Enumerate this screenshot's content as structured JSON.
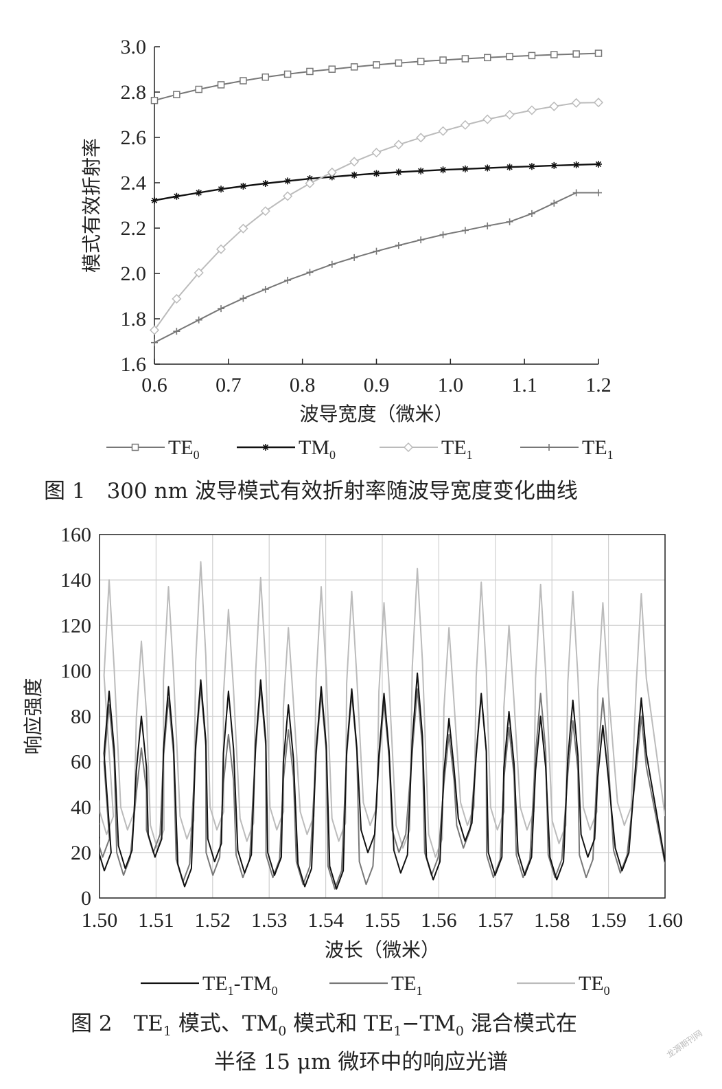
{
  "chart_data": [
    {
      "type": "line",
      "title": "",
      "xlabel": "波导宽度（微米）",
      "ylabel": "模式有效折射率",
      "xlim": [
        0.6,
        1.2
      ],
      "ylim": [
        1.6,
        3.0
      ],
      "x_ticks": [
        "0.6",
        "0.7",
        "0.8",
        "0.9",
        "1.0",
        "1.1",
        "1.2"
      ],
      "y_ticks": [
        "1.6",
        "1.8",
        "2.0",
        "2.2",
        "2.4",
        "2.6",
        "2.8",
        "3.0"
      ],
      "grid": false,
      "legend": "bottom",
      "x": [
        0.6,
        0.63,
        0.66,
        0.69,
        0.72,
        0.75,
        0.78,
        0.81,
        0.84,
        0.87,
        0.9,
        0.93,
        0.96,
        0.99,
        1.02,
        1.05,
        1.08,
        1.11,
        1.14,
        1.17,
        1.2
      ],
      "series": [
        {
          "legend_base": "TE",
          "legend_sub": "0",
          "color": "#777777",
          "marker": "square",
          "values": [
            2.763,
            2.789,
            2.812,
            2.832,
            2.85,
            2.866,
            2.879,
            2.891,
            2.901,
            2.911,
            2.92,
            2.928,
            2.935,
            2.941,
            2.947,
            2.952,
            2.957,
            2.961,
            2.965,
            2.968,
            2.971
          ]
        },
        {
          "legend_base": "TM",
          "legend_sub": "0",
          "color": "#111111",
          "marker": "asterisk",
          "values": [
            2.322,
            2.34,
            2.356,
            2.372,
            2.385,
            2.397,
            2.408,
            2.418,
            2.426,
            2.434,
            2.441,
            2.447,
            2.452,
            2.457,
            2.461,
            2.465,
            2.469,
            2.472,
            2.476,
            2.479,
            2.482
          ]
        },
        {
          "legend_base": "TE",
          "legend_sub": "1",
          "color": "#bbbbbb",
          "marker": "diamond",
          "values": [
            1.75,
            1.888,
            2.003,
            2.107,
            2.198,
            2.275,
            2.341,
            2.397,
            2.446,
            2.493,
            2.533,
            2.568,
            2.599,
            2.628,
            2.655,
            2.68,
            2.7,
            2.72,
            2.737,
            2.752,
            2.754
          ]
        },
        {
          "legend_base": "TE",
          "legend_sub": "1",
          "color": "#777777",
          "marker": "plus",
          "values": [
            1.695,
            1.745,
            1.795,
            1.845,
            1.89,
            1.93,
            1.97,
            2.005,
            2.04,
            2.07,
            2.098,
            2.124,
            2.148,
            2.171,
            2.19,
            2.21,
            2.228,
            2.264,
            2.31,
            2.356,
            2.356
          ]
        }
      ]
    },
    {
      "type": "line",
      "title": "",
      "xlabel": "波长（微米）",
      "ylabel": "响应强度",
      "xlim": [
        1.5,
        1.6
      ],
      "ylim": [
        0,
        160
      ],
      "x_ticks": [
        "1.50",
        "1.51",
        "1.52",
        "1.53",
        "1.54",
        "1.55",
        "1.56",
        "1.57",
        "1.58",
        "1.59",
        "1.60"
      ],
      "y_ticks": [
        "0",
        "20",
        "40",
        "60",
        "80",
        "100",
        "120",
        "140",
        "160"
      ],
      "grid": true,
      "legend": "bottom",
      "peak_positions": [
        1.5017,
        1.5074,
        1.5122,
        1.5179,
        1.5228,
        1.5285,
        1.5334,
        1.5392,
        1.5446,
        1.5503,
        1.5562,
        1.5618,
        1.5675,
        1.5724,
        1.578,
        1.5837,
        1.589,
        1.5958
      ],
      "series": [
        {
          "legend_base": "TE",
          "legend_sub": "1",
          "legend_suffix": "-TM",
          "legend_sub2": "0",
          "color": "#111111",
          "peaks": [
            91,
            80,
            93,
            96,
            91,
            96,
            85,
            93,
            92,
            90,
            99,
            79,
            90,
            82,
            80,
            87,
            76,
            88
          ],
          "valleys": [
            12,
            13,
            18,
            5,
            16,
            11,
            10,
            5,
            4,
            20,
            11,
            8,
            25,
            10,
            10,
            8,
            18,
            12
          ]
        },
        {
          "legend_base": "TE",
          "legend_sub": "1",
          "color": "#777777",
          "peaks": [
            85,
            66,
            88,
            93,
            72,
            93,
            74,
            90,
            90,
            86,
            92,
            72,
            89,
            75,
            90,
            78,
            88,
            80
          ],
          "valleys": [
            18,
            10,
            20,
            7,
            10,
            9,
            9,
            6,
            4,
            6,
            20,
            10,
            22,
            9,
            9,
            9,
            9,
            11
          ]
        },
        {
          "legend_base": "TE",
          "legend_sub": "0",
          "color": "#bbbbbb",
          "peaks": [
            140,
            113,
            137,
            148,
            127,
            141,
            119,
            137,
            135,
            130,
            145,
            119,
            139,
            120,
            138,
            135,
            130,
            134
          ],
          "valleys": [
            28,
            30,
            22,
            26,
            30,
            25,
            30,
            28,
            25,
            32,
            22,
            18,
            32,
            30,
            30,
            24,
            30,
            32
          ]
        }
      ]
    }
  ],
  "captions": {
    "fig1": "图 1　300 nm 波导模式有效折射率随波导宽度变化曲线",
    "fig2_line1": {
      "pre": "图 2　TE",
      "sub1": "1",
      "mid1": " 模式、TM",
      "sub2": "0",
      "mid2": " 模式和 TE",
      "sub3": "1",
      "mid3": "−TM",
      "sub4": "0",
      "post": " 混合模式在"
    },
    "fig2_line2": "半径 15 μm 微环中的响应光谱"
  },
  "watermark": "龙源期刊网"
}
